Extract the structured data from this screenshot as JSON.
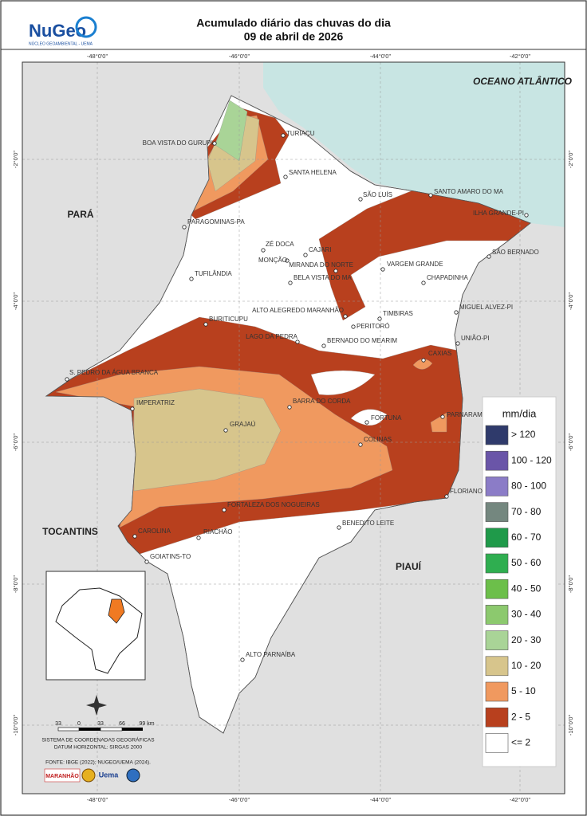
{
  "header": {
    "logo": "NuGeo",
    "logo_subtitle": "NÚCLEO GEOAMBIENTAL - UEMA",
    "title": "Acumulado diário das chuvas do dia",
    "subtitle": "09 de abril de 2026"
  },
  "graticule": {
    "longitudes": [
      "-48°0'0\"",
      "-46°0'0\"",
      "-44°0'0\"",
      "-42°0'0\""
    ],
    "latitudes": [
      "-2°0'0\"",
      "-4°0'0\"",
      "-6°0'0\"",
      "-8°0'0\"",
      "-10°0'0\""
    ]
  },
  "regions": [
    "PARÁ",
    "TOCANTINS",
    "PIAUÍ",
    "OCEANO ATLÂNTICO"
  ],
  "cities": [
    "BOA VISTA DO GURUPI",
    "TURIAÇU",
    "SANTA HELENA",
    "SÃO LUÍS",
    "SANTO AMARO DO MA",
    "ILHA GRANDE-PI",
    "PARAGOMINAS-PA",
    "ZÉ DOCA",
    "CAJARI",
    "MONÇÃO",
    "MIRANDA DO NORTE",
    "VARGEM GRANDE",
    "SÃO BERNADO",
    "TUFILÂNDIA",
    "BELA VISTA DO MA",
    "CHAPADINHA",
    "ALTO ALEGREDO MARANHÃO",
    "TIMBIRAS",
    "PERITORÓ",
    "MIGUEL ALVEZ-PI",
    "BURITICUPU",
    "LAGO DA PEDRA",
    "BERNADO DO MEARIM",
    "UNIÃO-PI",
    "CAXIAS",
    "S. PEDRO DA ÁGUA BRANCA",
    "IMPERATRIZ",
    "BARRA DO CORDA",
    "FORTUNA",
    "PARNARAMA",
    "GRAJAÚ",
    "COLINAS",
    "FLORIANO",
    "FORTALEZA DOS NOGUEIRAS",
    "BENEDITO LEITE",
    "CAROLINA",
    "RIACHÃO",
    "GOIATINS-TO",
    "ALTO PARNAÍBA"
  ],
  "legend": {
    "title": "mm/dia",
    "items": [
      {
        "label": "> 120",
        "color": "#2f3a6b"
      },
      {
        "label": "100 - 120",
        "color": "#6a55a8"
      },
      {
        "label": "80 - 100",
        "color": "#8b7cc7"
      },
      {
        "label": "70 - 80",
        "color": "#74877f"
      },
      {
        "label": "60 - 70",
        "color": "#1f9a4a"
      },
      {
        "label": "50 - 60",
        "color": "#2fae50"
      },
      {
        "label": "40 - 50",
        "color": "#6cbf4a"
      },
      {
        "label": "30 - 40",
        "color": "#8cc96e"
      },
      {
        "label": "20 - 30",
        "color": "#a9d497"
      },
      {
        "label": "10 - 20",
        "color": "#d7c58c"
      },
      {
        "label": "5 - 10",
        "color": "#f0995f"
      },
      {
        "label": "2 - 5",
        "color": "#b8401e"
      },
      {
        "label": "<= 2",
        "color": "#ffffff"
      }
    ]
  },
  "scale": [
    "33",
    "0",
    "33",
    "66",
    "99 km"
  ],
  "notes": [
    "SISTEMA DE COORDENADAS GEOGRÁFICAS",
    "DATUM HORIZONTAL: SIRGAS 2000",
    "FONTE: IBGE (2022); NUGEO/UEMA (2024)."
  ],
  "logos": [
    "MARANHÃO",
    "Uema"
  ]
}
